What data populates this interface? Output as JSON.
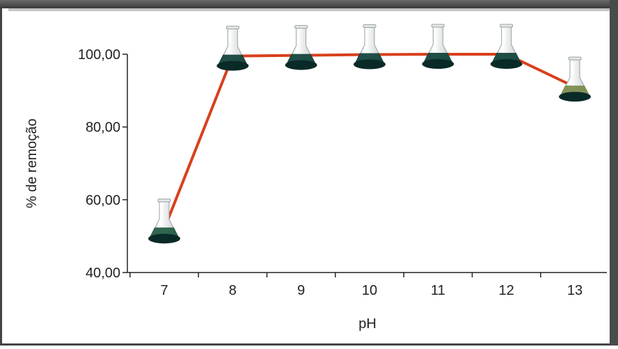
{
  "chart_data": {
    "type": "line",
    "xlabel": "pH",
    "ylabel": "% de remoção",
    "categories": [
      "7",
      "8",
      "9",
      "10",
      "11",
      "12",
      "13"
    ],
    "x_tick_labels": [
      "7",
      "8",
      "9",
      "10",
      "11",
      "12",
      "13"
    ],
    "y_tick_labels": [
      "40,00",
      "60,00",
      "80,00",
      "100,00"
    ],
    "y_ticks": [
      40,
      60,
      80,
      100
    ],
    "ylim": [
      40,
      100
    ],
    "grid": false,
    "series": [
      {
        "values": [
          52,
          99.5,
          99.7,
          99.9,
          100,
          100,
          91
        ]
      }
    ],
    "markers": "erlenmeyer-flask-icon",
    "marker_fill_colors": [
      "#1e5a40",
      "#0e3f38",
      "#0e3f38",
      "#0e3f38",
      "#0e3f38",
      "#0e3f38",
      "#7a8a4a"
    ],
    "line_color": "#d8401c"
  }
}
